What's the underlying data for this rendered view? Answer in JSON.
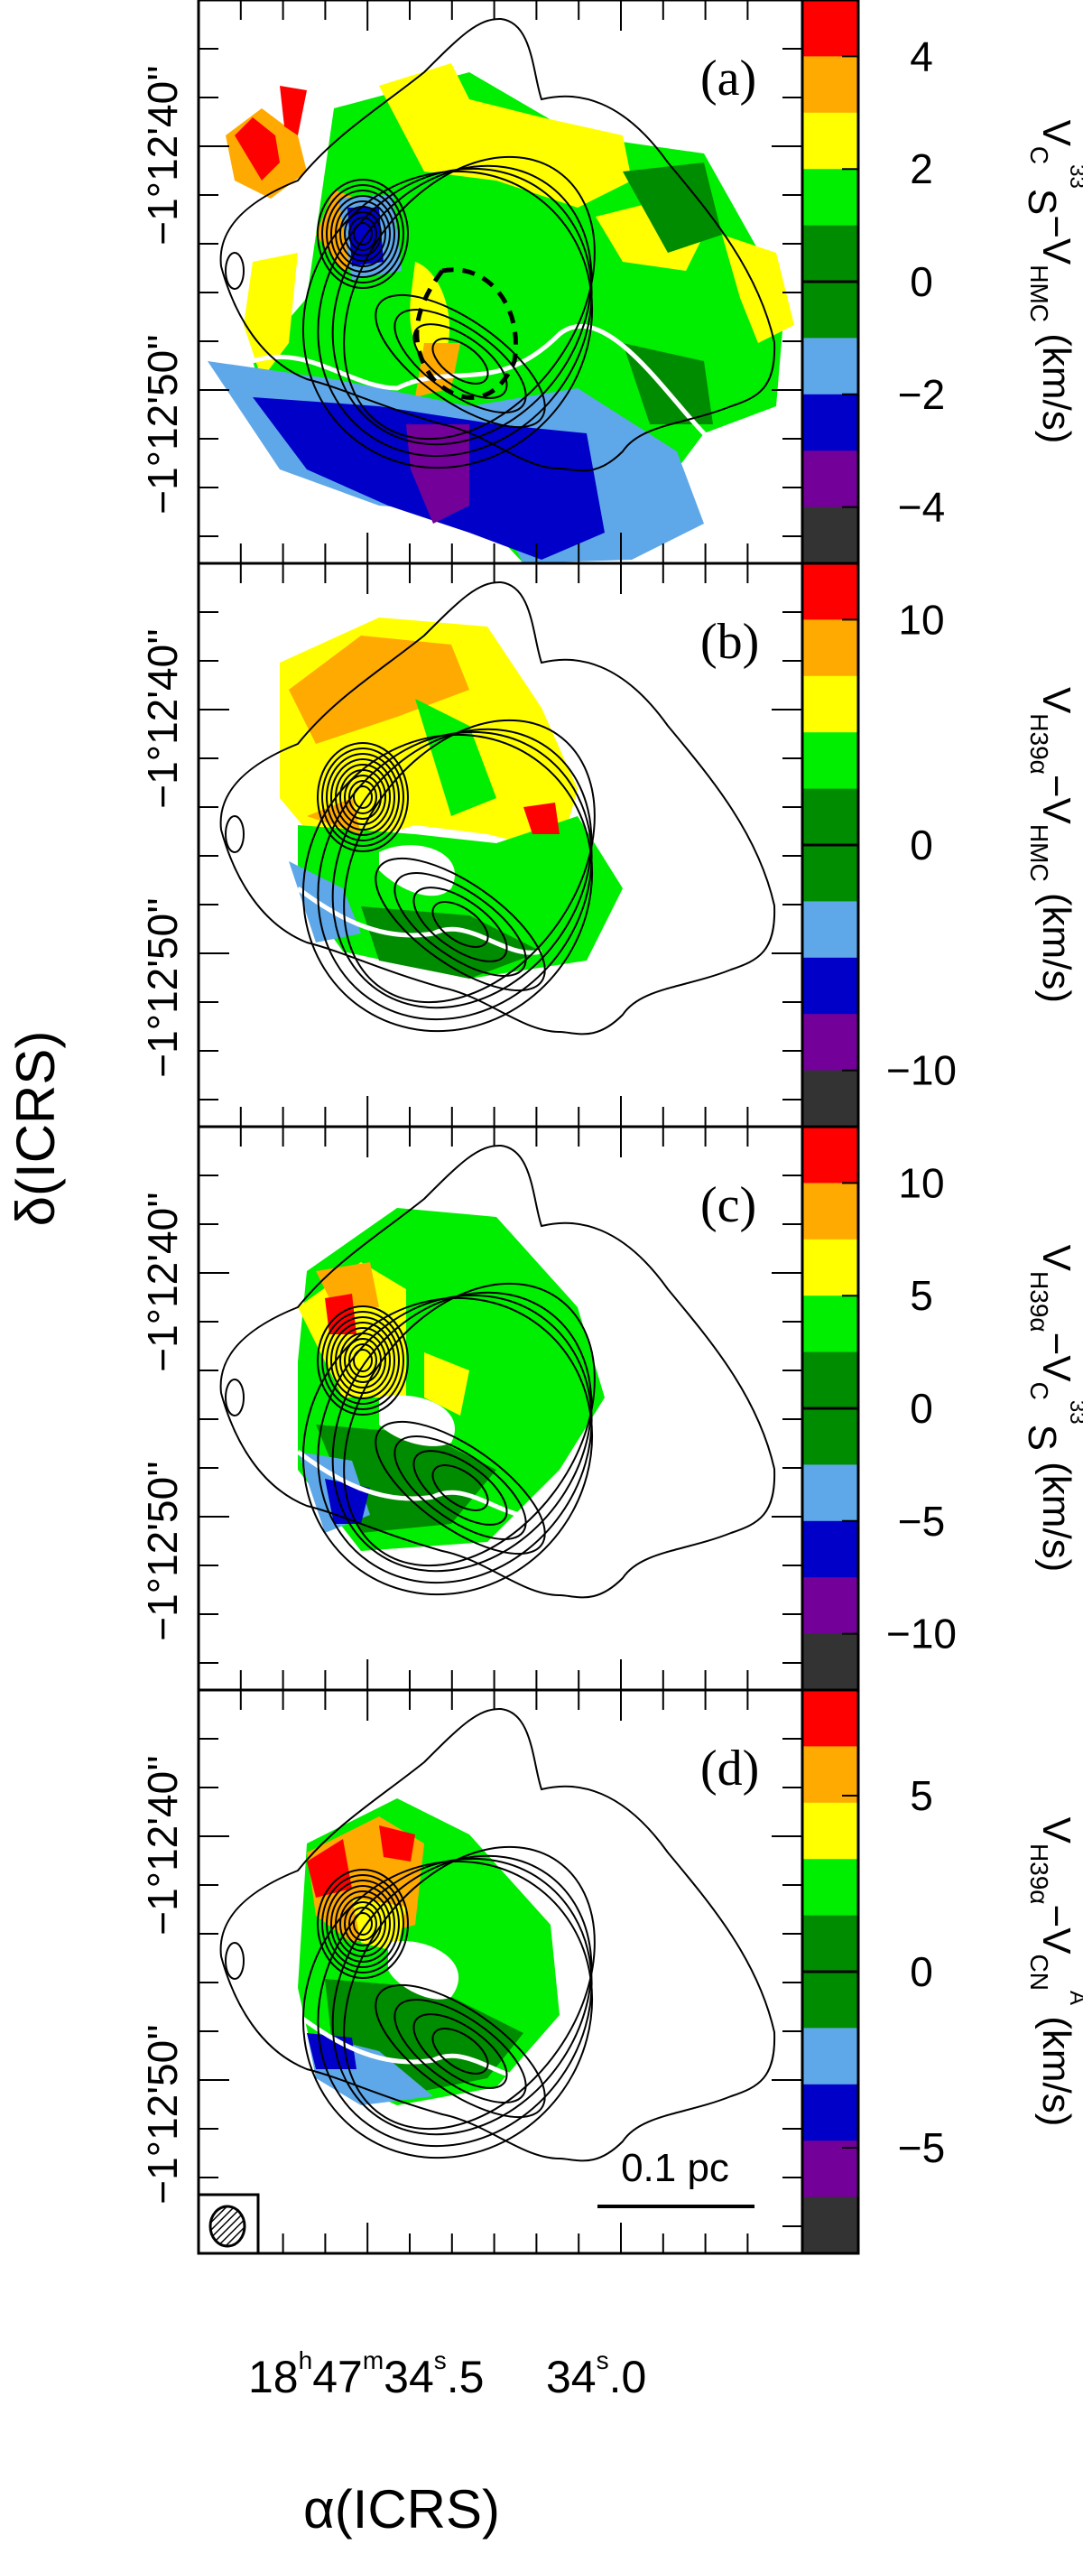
{
  "figure": {
    "xlabel": "α(ICRS)",
    "ylabel": "δ(ICRS)",
    "ra_ticks": [
      {
        "h": "18",
        "hsup": "h",
        "m": "47",
        "msup": "m",
        "s": "34",
        "ssup": "s",
        "frac": ".5"
      },
      {
        "s": "34",
        "ssup": "s",
        "frac": ".0"
      }
    ],
    "dec_ticks": [
      "−1°12'40''",
      "−1°12'50''"
    ],
    "scale_bar": "0.1 pc",
    "beam_icon": "hatched-ellipse-beam"
  },
  "colors": {
    "bins_top_to_bottom": [
      "#ff0000",
      "#ffaa00",
      "#ffff00",
      "#00ee00",
      "#008c00",
      "#008c00",
      "#5ea8ea",
      "#0000c8",
      "#730099",
      "#333333"
    ],
    "contour": "#000000",
    "zero_contour": "#ffffff"
  },
  "chart_data": [
    {
      "type": "heatmap",
      "panel": "(a)",
      "colorbar": {
        "title_main": "V",
        "title_sub1": "C",
        "title_sup1": "33",
        "title_after1": "S",
        "title_minus": "−V",
        "title_sub2": "HMC",
        "title_unit": "(km/s)",
        "range": [
          -5,
          5
        ],
        "ticks": [
          "4",
          "2",
          "0",
          "−2",
          "−4"
        ],
        "tick_values": [
          4,
          2,
          0,
          -2,
          -4
        ]
      }
    },
    {
      "type": "heatmap",
      "panel": "(b)",
      "colorbar": {
        "title_main": "V",
        "title_sub1": "H39α",
        "title_minus": "−V",
        "title_sub2": "HMC",
        "title_unit": "(km/s)",
        "range": [
          -12.5,
          12.5
        ],
        "ticks": [
          "10",
          "0",
          "−10"
        ],
        "tick_values": [
          10,
          0,
          -10
        ]
      }
    },
    {
      "type": "heatmap",
      "panel": "(c)",
      "colorbar": {
        "title_main": "V",
        "title_sub1": "H39α",
        "title_minus": "−V",
        "title_sub2": "C",
        "title_sup2": "33",
        "title_after2": "S",
        "title_unit": "(km/s)",
        "range": [
          -12.5,
          12.5
        ],
        "ticks": [
          "10",
          "5",
          "0",
          "−5",
          "−10"
        ],
        "tick_values": [
          10,
          5,
          0,
          -5,
          -10
        ]
      }
    },
    {
      "type": "heatmap",
      "panel": "(d)",
      "colorbar": {
        "title_main": "V",
        "title_sub1": "H39α",
        "title_minus": "−V",
        "title_sub2": "CN",
        "title_sup2": "A",
        "title_unit": "(km/s)",
        "range": [
          -8,
          8
        ],
        "ticks": [
          "5",
          "0",
          "−5"
        ],
        "tick_values": [
          5,
          0,
          -5
        ]
      }
    }
  ]
}
